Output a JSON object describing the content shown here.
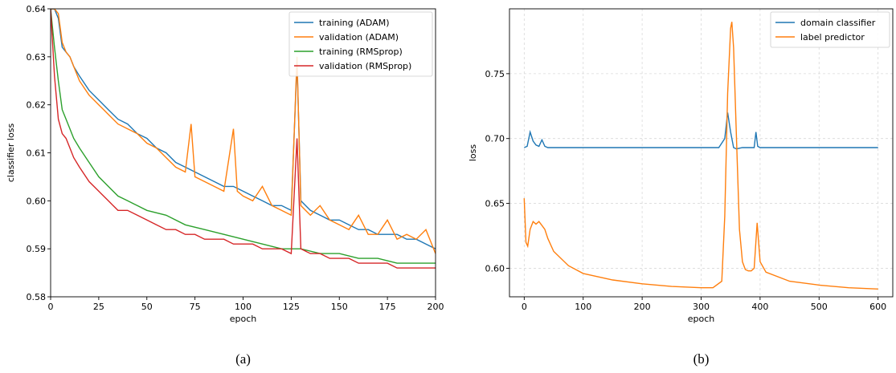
{
  "chart_data": [
    {
      "type": "line",
      "caption": "(a)",
      "xlabel": "epoch",
      "ylabel": "classifier loss",
      "xlim": [
        0,
        200
      ],
      "ylim": [
        0.58,
        0.64
      ],
      "xticks": [
        "0",
        "25",
        "50",
        "75",
        "100",
        "125",
        "150",
        "175",
        "200"
      ],
      "yticks": [
        "0.58",
        "0.59",
        "0.60",
        "0.61",
        "0.62",
        "0.63",
        "0.64"
      ],
      "legend_loc": "top-right",
      "grid": false,
      "series": [
        {
          "name": "training (ADAM)",
          "color": "#1f77b4",
          "x": [
            0,
            2,
            4,
            6,
            8,
            10,
            12,
            15,
            20,
            25,
            30,
            35,
            40,
            45,
            50,
            55,
            60,
            65,
            70,
            75,
            80,
            85,
            90,
            95,
            100,
            105,
            110,
            115,
            120,
            125,
            128,
            130,
            135,
            140,
            145,
            150,
            155,
            160,
            165,
            170,
            175,
            180,
            185,
            190,
            195,
            200
          ],
          "y": [
            0.64,
            0.64,
            0.638,
            0.632,
            0.631,
            0.63,
            0.628,
            0.626,
            0.623,
            0.621,
            0.619,
            0.617,
            0.616,
            0.614,
            0.613,
            0.611,
            0.61,
            0.608,
            0.607,
            0.606,
            0.605,
            0.604,
            0.603,
            0.603,
            0.602,
            0.601,
            0.6,
            0.599,
            0.599,
            0.598,
            0.629,
            0.6,
            0.598,
            0.597,
            0.596,
            0.596,
            0.595,
            0.594,
            0.594,
            0.593,
            0.593,
            0.593,
            0.592,
            0.592,
            0.591,
            0.59
          ]
        },
        {
          "name": "validation (ADAM)",
          "color": "#ff7f0e",
          "x": [
            0,
            2,
            4,
            6,
            8,
            10,
            12,
            15,
            20,
            25,
            30,
            35,
            40,
            45,
            50,
            55,
            60,
            65,
            70,
            73,
            75,
            80,
            85,
            90,
            95,
            97,
            100,
            105,
            110,
            115,
            120,
            125,
            128,
            130,
            135,
            140,
            145,
            150,
            155,
            160,
            165,
            170,
            175,
            180,
            185,
            190,
            195,
            200
          ],
          "y": [
            0.64,
            0.64,
            0.639,
            0.633,
            0.631,
            0.63,
            0.628,
            0.625,
            0.622,
            0.62,
            0.618,
            0.616,
            0.615,
            0.614,
            0.612,
            0.611,
            0.609,
            0.607,
            0.606,
            0.616,
            0.605,
            0.604,
            0.603,
            0.602,
            0.615,
            0.602,
            0.601,
            0.6,
            0.603,
            0.599,
            0.598,
            0.597,
            0.63,
            0.599,
            0.597,
            0.599,
            0.596,
            0.595,
            0.594,
            0.597,
            0.593,
            0.593,
            0.596,
            0.592,
            0.593,
            0.592,
            0.594,
            0.589
          ]
        },
        {
          "name": "training (RMSprop)",
          "color": "#2ca02c",
          "x": [
            0,
            2,
            4,
            6,
            8,
            10,
            12,
            15,
            20,
            25,
            30,
            35,
            40,
            45,
            50,
            60,
            70,
            80,
            90,
            100,
            110,
            120,
            130,
            140,
            150,
            160,
            170,
            180,
            190,
            200
          ],
          "y": [
            0.64,
            0.632,
            0.625,
            0.619,
            0.617,
            0.615,
            0.613,
            0.611,
            0.608,
            0.605,
            0.603,
            0.601,
            0.6,
            0.599,
            0.598,
            0.597,
            0.595,
            0.594,
            0.593,
            0.592,
            0.591,
            0.59,
            0.59,
            0.589,
            0.589,
            0.588,
            0.588,
            0.587,
            0.587,
            0.587
          ]
        },
        {
          "name": "validation (RMSprop)",
          "color": "#d62728",
          "x": [
            0,
            2,
            4,
            6,
            8,
            10,
            12,
            15,
            20,
            25,
            30,
            35,
            40,
            45,
            50,
            55,
            60,
            65,
            70,
            75,
            80,
            85,
            90,
            95,
            100,
            105,
            110,
            115,
            120,
            125,
            128,
            130,
            135,
            140,
            145,
            150,
            155,
            160,
            165,
            170,
            175,
            180,
            185,
            190,
            195,
            200
          ],
          "y": [
            0.64,
            0.626,
            0.617,
            0.614,
            0.613,
            0.611,
            0.609,
            0.607,
            0.604,
            0.602,
            0.6,
            0.598,
            0.598,
            0.597,
            0.596,
            0.595,
            0.594,
            0.594,
            0.593,
            0.593,
            0.592,
            0.592,
            0.592,
            0.591,
            0.591,
            0.591,
            0.59,
            0.59,
            0.59,
            0.589,
            0.613,
            0.59,
            0.589,
            0.589,
            0.588,
            0.588,
            0.588,
            0.587,
            0.587,
            0.587,
            0.587,
            0.586,
            0.586,
            0.586,
            0.586,
            0.586
          ]
        }
      ]
    },
    {
      "type": "line",
      "caption": "(b)",
      "xlabel": "epoch",
      "ylabel": "loss",
      "xlim": [
        -25,
        625
      ],
      "ylim": [
        0.578,
        0.8
      ],
      "xticks": [
        "0",
        "100",
        "200",
        "300",
        "400",
        "500",
        "600"
      ],
      "yticks": [
        "0.60",
        "0.65",
        "0.70",
        "0.75"
      ],
      "legend_loc": "top-right",
      "grid": true,
      "series": [
        {
          "name": "domain classifier",
          "color": "#1f77b4",
          "x": [
            0,
            5,
            10,
            15,
            20,
            25,
            30,
            35,
            40,
            50,
            100,
            200,
            300,
            330,
            340,
            345,
            350,
            355,
            360,
            370,
            380,
            385,
            390,
            393,
            396,
            400,
            450,
            500,
            550,
            600
          ],
          "y": [
            0.693,
            0.694,
            0.705,
            0.698,
            0.695,
            0.694,
            0.699,
            0.694,
            0.693,
            0.693,
            0.693,
            0.693,
            0.693,
            0.693,
            0.7,
            0.72,
            0.705,
            0.693,
            0.692,
            0.693,
            0.693,
            0.693,
            0.693,
            0.705,
            0.694,
            0.693,
            0.693,
            0.693,
            0.693,
            0.693
          ]
        },
        {
          "name": "label predictor",
          "color": "#ff7f0e",
          "x": [
            0,
            3,
            6,
            10,
            15,
            20,
            25,
            30,
            35,
            40,
            50,
            75,
            100,
            150,
            200,
            250,
            300,
            320,
            335,
            340,
            345,
            350,
            352,
            355,
            360,
            365,
            370,
            375,
            380,
            385,
            390,
            395,
            400,
            410,
            450,
            500,
            550,
            600
          ],
          "y": [
            0.654,
            0.62,
            0.617,
            0.63,
            0.636,
            0.634,
            0.636,
            0.633,
            0.63,
            0.623,
            0.613,
            0.602,
            0.596,
            0.591,
            0.588,
            0.586,
            0.585,
            0.585,
            0.59,
            0.64,
            0.735,
            0.785,
            0.79,
            0.77,
            0.7,
            0.63,
            0.605,
            0.599,
            0.598,
            0.598,
            0.6,
            0.635,
            0.605,
            0.597,
            0.59,
            0.587,
            0.585,
            0.584
          ]
        }
      ]
    }
  ]
}
